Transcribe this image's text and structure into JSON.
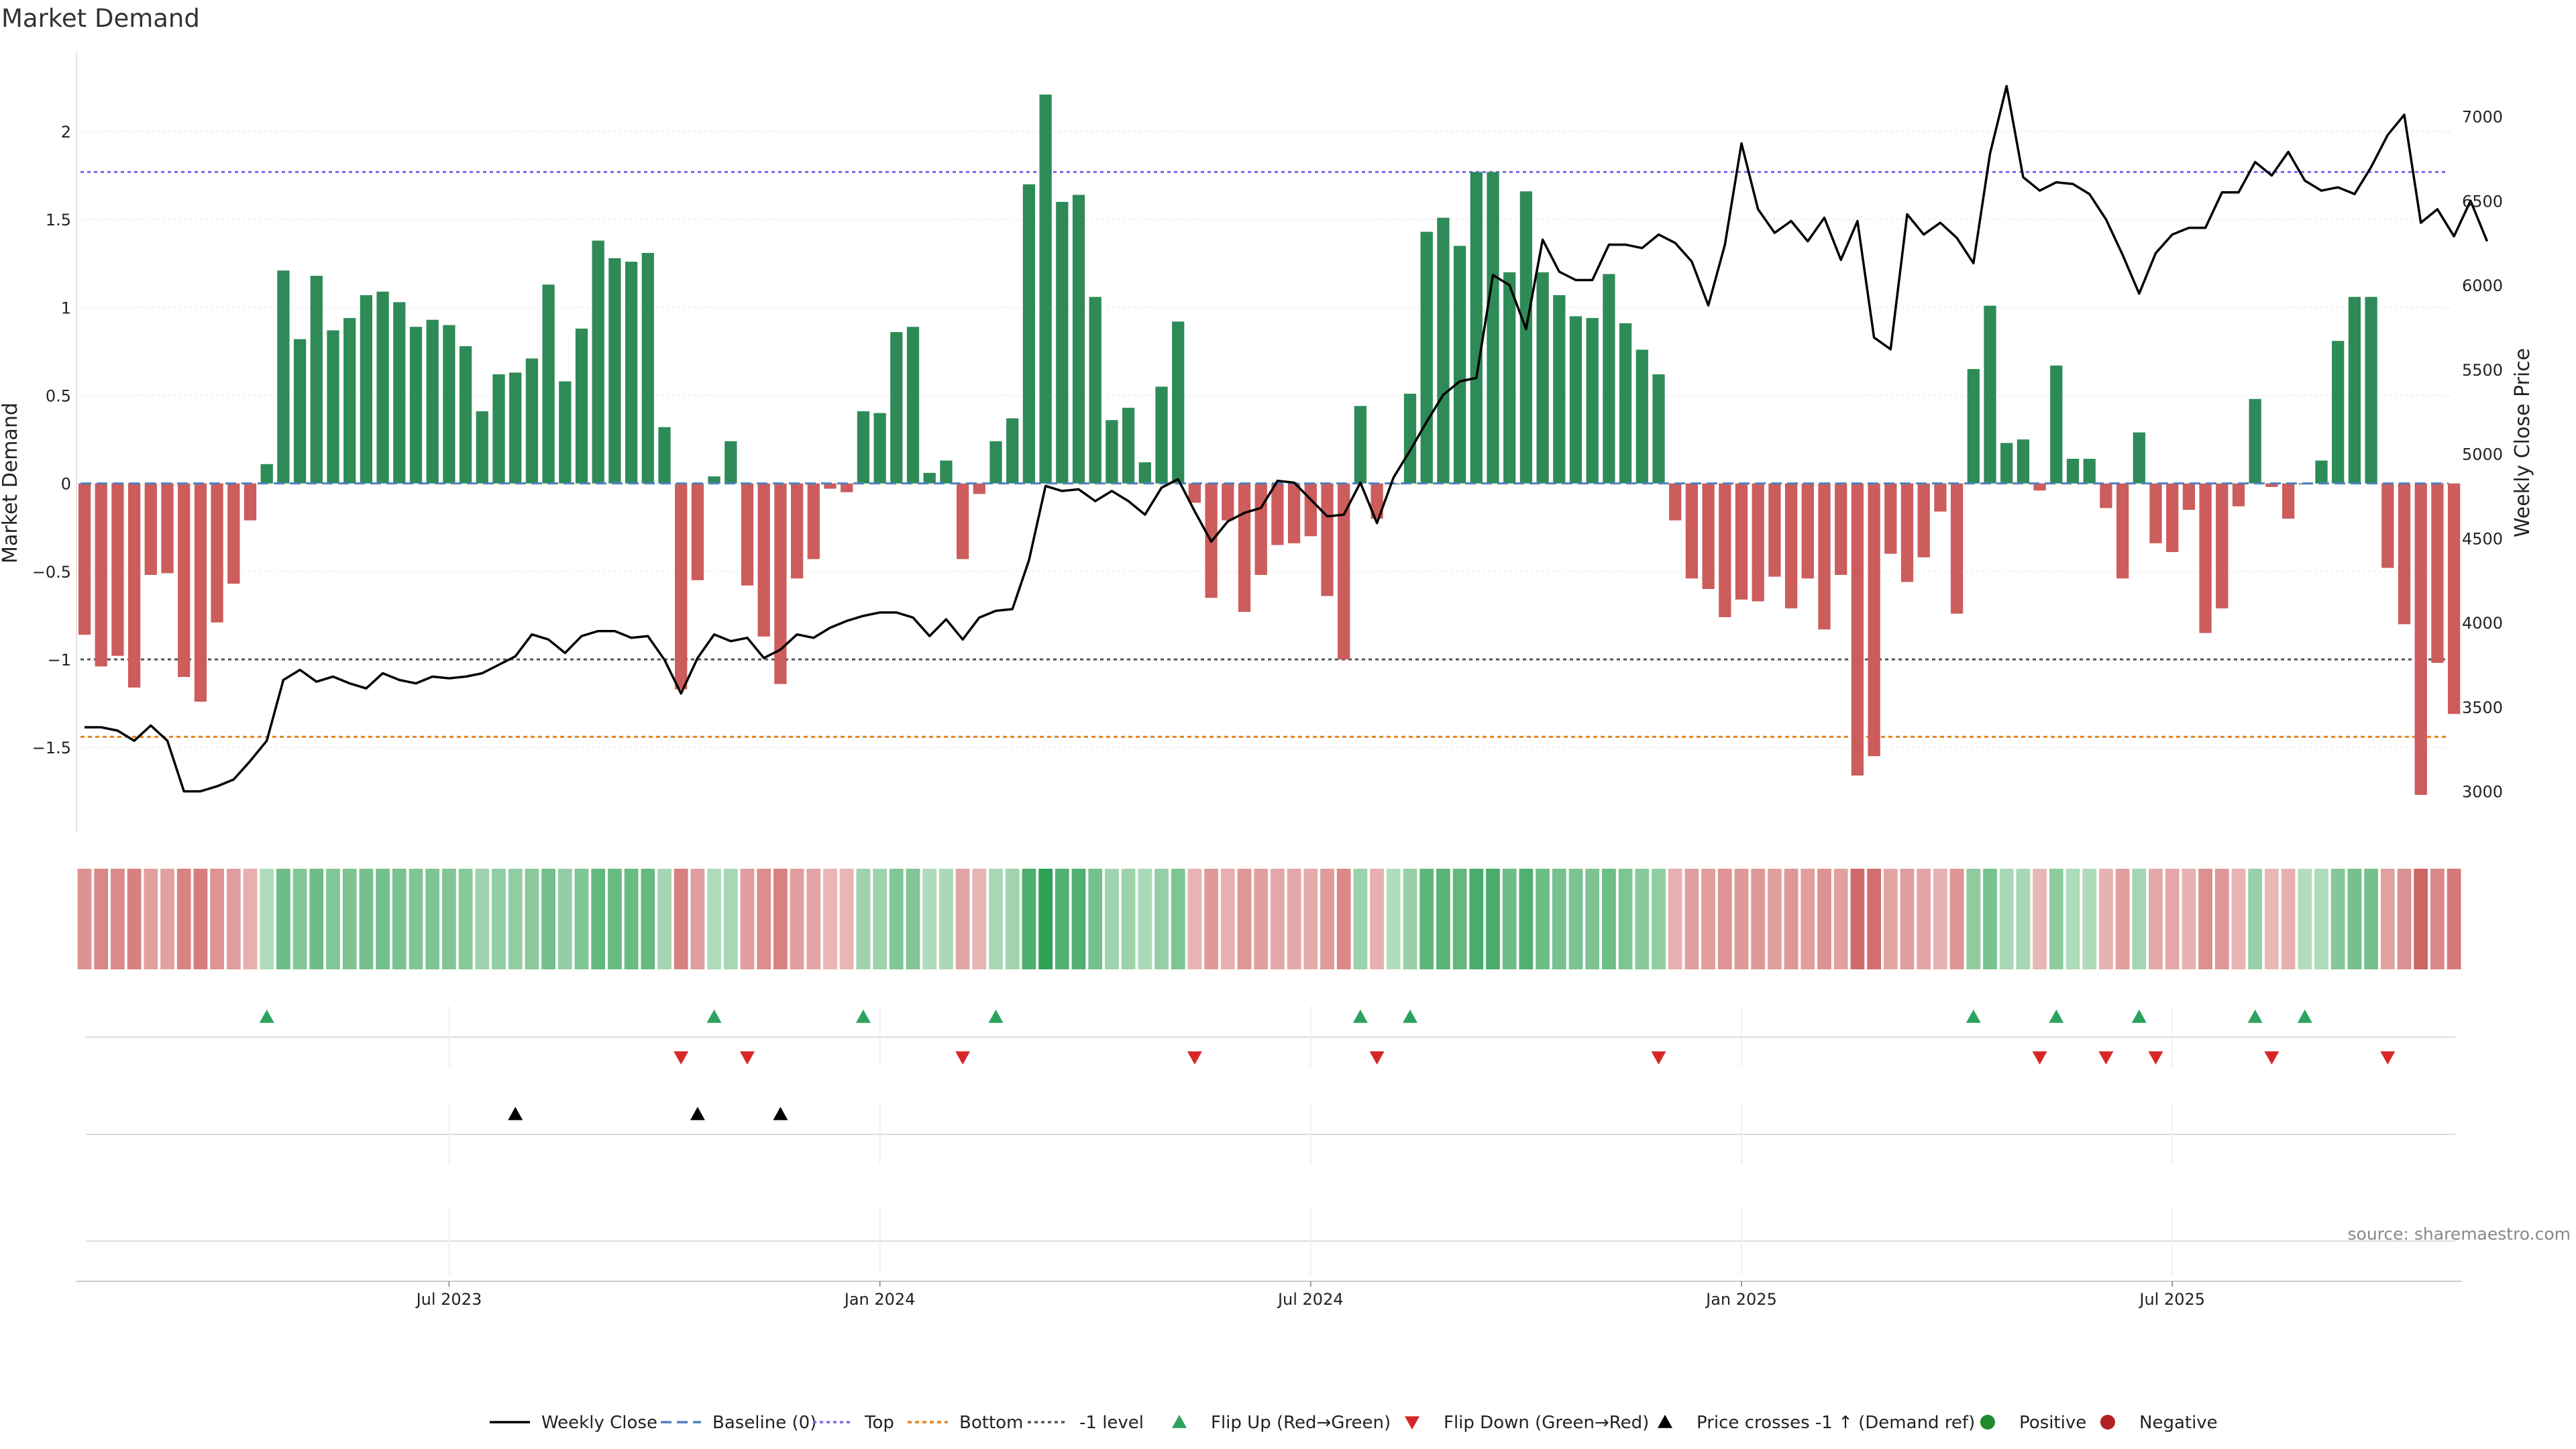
{
  "title": "Market Demand",
  "source": "source: sharemaestro.com",
  "colors": {
    "positive": "#2e8b57",
    "negative": "#cd5c5c",
    "close": "#000000",
    "baseline": "#4f81bd",
    "top": "#7b68ee",
    "bottom": "#e8821e",
    "minus1": "#555555",
    "flip_up": "#2ca25f",
    "flip_down": "#d62728",
    "cross": "#000000"
  },
  "chart_data": {
    "type": "bar",
    "title": "Market Demand",
    "ylabel": "Market Demand",
    "y2label": "Weekly Close Price",
    "ylim": [
      -1.98,
      2.45
    ],
    "y_ticks": [
      -1.5,
      -1,
      -0.5,
      0,
      0.5,
      1,
      1.5,
      2
    ],
    "y_tick_labels": [
      "−1.5",
      "−1",
      "−0.5",
      "0",
      "0.5",
      "1",
      "1.5",
      "2"
    ],
    "y2lim": [
      2760,
      7380
    ],
    "y2_ticks": [
      3000,
      3500,
      4000,
      4500,
      5000,
      5500,
      6000,
      6500,
      7000
    ],
    "y2_tick_labels": [
      "3000",
      "3500",
      "4000",
      "4500",
      "5000",
      "5500",
      "6000",
      "6500",
      "7000"
    ],
    "x_ticks": [
      {
        "week": 22,
        "label": "Jul 2023"
      },
      {
        "week": 48,
        "label": "Jan 2024"
      },
      {
        "week": 74,
        "label": "Jul 2024"
      },
      {
        "week": 100,
        "label": "Jan 2025"
      },
      {
        "week": 126,
        "label": "Jul 2025"
      }
    ],
    "levels": {
      "baseline": 0,
      "top": 1.77,
      "bottom": -1.44,
      "minus_one": -1.0
    },
    "demand": [
      -0.86,
      -1.04,
      -0.98,
      -1.16,
      -0.52,
      -0.51,
      -1.1,
      -1.24,
      -0.79,
      -0.57,
      -0.21,
      0.11,
      1.21,
      0.82,
      1.18,
      0.87,
      0.94,
      1.07,
      1.09,
      1.03,
      0.89,
      0.93,
      0.9,
      0.78,
      0.41,
      0.62,
      0.63,
      0.71,
      1.13,
      0.58,
      0.88,
      1.38,
      1.28,
      1.26,
      1.31,
      0.32,
      -1.17,
      -0.55,
      0.04,
      0.24,
      -0.58,
      -0.87,
      -1.14,
      -0.54,
      -0.43,
      -0.03,
      -0.05,
      0.41,
      0.4,
      0.86,
      0.89,
      0.06,
      0.13,
      -0.43,
      -0.06,
      0.24,
      0.37,
      1.7,
      2.21,
      1.6,
      1.64,
      1.06,
      0.36,
      0.43,
      0.12,
      0.55,
      0.92,
      -0.11,
      -0.65,
      -0.21,
      -0.73,
      -0.52,
      -0.35,
      -0.34,
      -0.3,
      -0.64,
      -1.0,
      0.44,
      -0.2,
      0.0,
      0.51,
      1.43,
      1.51,
      1.35,
      1.77,
      1.77,
      1.2,
      1.66,
      1.2,
      1.07,
      0.95,
      0.94,
      1.19,
      0.91,
      0.76,
      0.62,
      -0.21,
      -0.54,
      -0.6,
      -0.76,
      -0.66,
      -0.67,
      -0.53,
      -0.71,
      -0.54,
      -0.83,
      -0.52,
      -1.66,
      -1.55,
      -0.4,
      -0.56,
      -0.42,
      -0.16,
      -0.74,
      0.65,
      1.01,
      0.23,
      0.25,
      -0.04,
      0.67,
      0.14,
      0.14,
      -0.14,
      -0.54,
      0.29,
      -0.34,
      -0.39,
      -0.15,
      -0.85,
      -0.71,
      -0.13,
      0.48,
      -0.02,
      -0.2,
      0.0,
      0.13,
      0.81,
      1.06,
      1.06,
      -0.48,
      -0.8,
      -1.77,
      -1.02,
      -1.31
    ],
    "close": [
      3380,
      3380,
      3360,
      3300,
      3390,
      3300,
      3000,
      3000,
      3030,
      3070,
      3180,
      3300,
      3660,
      3720,
      3650,
      3680,
      3640,
      3610,
      3700,
      3660,
      3640,
      3680,
      3670,
      3680,
      3700,
      3750,
      3800,
      3930,
      3900,
      3820,
      3920,
      3950,
      3950,
      3910,
      3920,
      3780,
      3580,
      3790,
      3930,
      3890,
      3910,
      3790,
      3840,
      3930,
      3910,
      3970,
      4010,
      4040,
      4060,
      4060,
      4030,
      3920,
      4020,
      3900,
      4030,
      4070,
      4080,
      4370,
      4810,
      4780,
      4790,
      4720,
      4780,
      4720,
      4640,
      4800,
      4850,
      4660,
      4480,
      4600,
      4650,
      4680,
      4840,
      4830,
      4730,
      4630,
      4640,
      4830,
      4590,
      4860,
      5020,
      5190,
      5350,
      5430,
      5450,
      6060,
      6000,
      5740,
      6270,
      6080,
      6030,
      6030,
      6240,
      6240,
      6220,
      6300,
      6250,
      6140,
      5880,
      6240,
      6840,
      6450,
      6310,
      6380,
      6260,
      6400,
      6150,
      6380,
      5690,
      5620,
      6420,
      6300,
      6370,
      6280,
      6130,
      6780,
      7180,
      6640,
      6560,
      6610,
      6600,
      6540,
      6390,
      6180,
      5950,
      6190,
      6300,
      6340,
      6340,
      6550,
      6550,
      6730,
      6650,
      6790,
      6620,
      6560,
      6580,
      6540,
      6700,
      6890,
      7010,
      6370,
      6450,
      6290,
      6500,
      6260
    ],
    "heat_levels": [
      -0.38,
      -0.49,
      -0.46,
      -0.55,
      -0.25,
      -0.24,
      -0.52,
      -0.58,
      -0.37,
      -0.27,
      -0.1,
      0.05,
      0.54,
      0.37,
      0.53,
      0.39,
      0.42,
      0.48,
      0.49,
      0.46,
      0.4,
      0.42,
      0.4,
      0.35,
      0.18,
      0.28,
      0.28,
      0.32,
      0.51,
      0.26,
      0.4,
      0.62,
      0.57,
      0.57,
      0.59,
      0.14,
      -0.55,
      -0.26,
      0.05,
      0.11,
      -0.27,
      -0.41,
      -0.54,
      -0.25,
      -0.2,
      -0.03,
      -0.04,
      0.18,
      0.18,
      0.39,
      0.4,
      0.05,
      0.08,
      -0.2,
      -0.06,
      0.11,
      0.17,
      0.77,
      1.0,
      0.72,
      0.74,
      0.48,
      0.16,
      0.19,
      0.08,
      0.25,
      0.41,
      -0.06,
      -0.31,
      -0.1,
      -0.34,
      -0.25,
      -0.16,
      -0.16,
      -0.14,
      -0.3,
      -0.47,
      0.2,
      -0.1,
      0.03,
      0.23,
      0.65,
      0.68,
      0.61,
      0.8,
      0.8,
      0.54,
      0.75,
      0.54,
      0.48,
      0.43,
      0.42,
      0.54,
      0.41,
      0.34,
      0.28,
      -0.1,
      -0.26,
      -0.28,
      -0.36,
      -0.31,
      -0.32,
      -0.25,
      -0.33,
      -0.26,
      -0.39,
      -0.25,
      -0.78,
      -0.73,
      -0.19,
      -0.26,
      -0.2,
      -0.08,
      -0.35,
      0.29,
      0.46,
      0.1,
      0.11,
      -0.03,
      0.3,
      0.06,
      0.06,
      -0.07,
      -0.25,
      0.13,
      -0.16,
      -0.18,
      -0.07,
      -0.4,
      -0.33,
      -0.06,
      0.22,
      -0.02,
      -0.09,
      0.02,
      0.06,
      0.37,
      0.48,
      0.48,
      -0.23,
      -0.38,
      -0.83,
      -0.48,
      -0.62
    ],
    "flip_up_weeks": [
      11,
      38,
      47,
      55,
      77,
      80,
      114,
      119,
      124,
      131,
      134
    ],
    "flip_down_weeks": [
      36,
      40,
      53,
      67,
      78,
      95,
      118,
      122,
      125,
      132,
      139
    ],
    "cross_weeks": [
      26,
      37,
      42
    ],
    "legend": [
      {
        "name": "Weekly Close",
        "marker": "line-solid-black"
      },
      {
        "name": "Baseline (0)",
        "marker": "line-dashed-blue"
      },
      {
        "name": "Top",
        "marker": "line-dotted-purple"
      },
      {
        "name": "Bottom",
        "marker": "line-dotted-orange"
      },
      {
        "name": "-1 level",
        "marker": "line-dotted-grey"
      },
      {
        "name": "Flip Up (Red→Green)",
        "marker": "triangle-up-green"
      },
      {
        "name": "Flip Down (Green→Red)",
        "marker": "triangle-down-red"
      },
      {
        "name": "Price crosses -1 ↑ (Demand ref)",
        "marker": "triangle-up-black"
      },
      {
        "name": "Positive",
        "marker": "dot-green"
      },
      {
        "name": "Negative",
        "marker": "dot-red"
      }
    ]
  }
}
